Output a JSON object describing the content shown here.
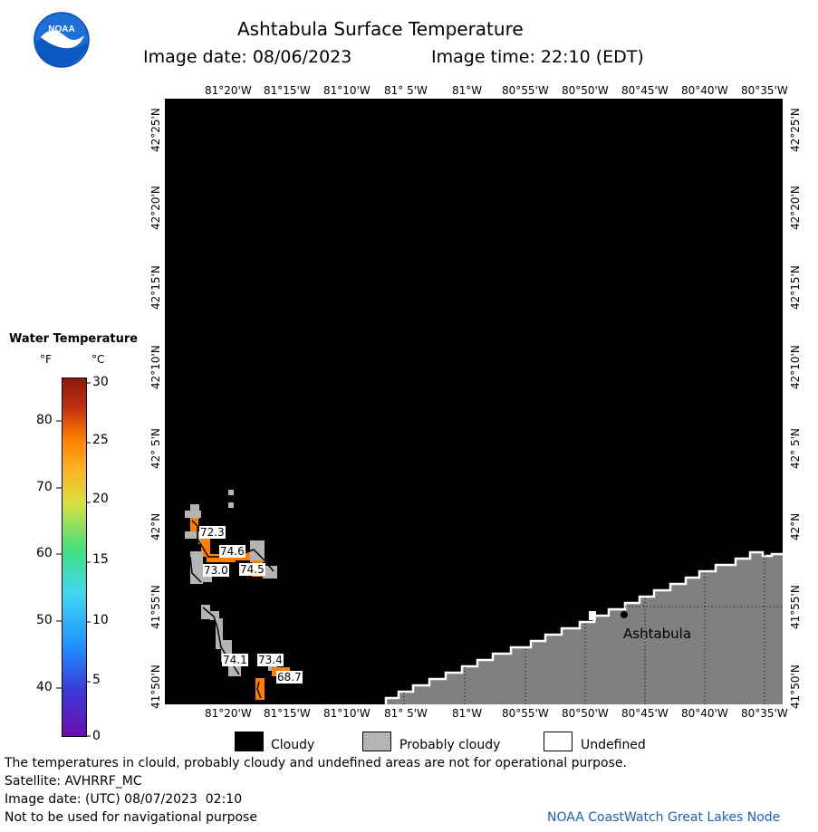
{
  "header": {
    "title": "Ashtabula Surface Temperature",
    "image_date": "Image date: 08/06/2023",
    "image_time": "Image time: 22:10 (EDT)",
    "logo_text": "NOAA"
  },
  "map": {
    "top_lon_labels": [
      "81°20'W",
      "81°15'W",
      "81°10'W",
      "81° 5'W",
      "81°W",
      "80°55'W",
      "80°50'W",
      "80°45'W",
      "80°40'W",
      "80°35'W"
    ],
    "bottom_lon_labels": [
      "81°20'W",
      "81°15'W",
      "81°10'W",
      "81° 5'W",
      "81°W",
      "80°55'W",
      "80°50'W",
      "80°45'W",
      "80°40'W",
      "80°35'W"
    ],
    "left_lat_labels": [
      "42°25'N",
      "42°20'N",
      "42°15'N",
      "42°10'N",
      "42° 5'N",
      "42°N",
      "41°55'N",
      "41°50'N"
    ],
    "right_lat_labels": [
      "42°25'N",
      "42°20'N",
      "42°15'N",
      "42°10'N",
      "42° 5'N",
      "42°N",
      "41°55'N",
      "41°50'N"
    ],
    "place_label": "Ashtabula",
    "temperature_labels": [
      "72.3",
      "74.6",
      "73.0",
      "74.5",
      "74.1",
      "73.4",
      "68.7"
    ]
  },
  "legend": {
    "title": "Water Temperature",
    "unit_f": "°F",
    "unit_c": "°C",
    "f_ticks": [
      "80",
      "70",
      "60",
      "50",
      "40"
    ],
    "c_ticks": [
      "30",
      "25",
      "20",
      "15",
      "10",
      "5",
      "0"
    ]
  },
  "key": {
    "cloudy": "Cloudy",
    "probably_cloudy": "Probably cloudy",
    "undefined": "Undefined",
    "colors": {
      "cloudy": "#000000",
      "probably_cloudy": "#b4b4b4",
      "undefined": "#ffffff",
      "land": "#808080",
      "warm": "#ff7f00"
    }
  },
  "footer": {
    "disclaimer": "The temperatures in clould, probably cloudy and undefined areas are not for operational purpose.",
    "satellite": "Satellite: AVHRRF_MC",
    "utc_date": "Image date: (UTC) 08/07/2023  02:10",
    "navigation": "Not to be used for navigational purpose",
    "credit": "NOAA CoastWatch Great Lakes Node"
  }
}
